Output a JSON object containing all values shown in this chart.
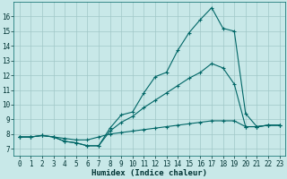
{
  "title": "",
  "xlabel": "Humidex (Indice chaleur)",
  "bg_color": "#c8e8e8",
  "grid_color": "#a0c8c8",
  "line_color": "#006666",
  "xlim": [
    -0.5,
    23.5
  ],
  "ylim": [
    6.5,
    17.0
  ],
  "yticks": [
    7,
    8,
    9,
    10,
    11,
    12,
    13,
    14,
    15,
    16
  ],
  "xticks": [
    0,
    1,
    2,
    3,
    4,
    5,
    6,
    7,
    8,
    9,
    10,
    11,
    12,
    13,
    14,
    15,
    16,
    17,
    18,
    19,
    20,
    21,
    22,
    23
  ],
  "line1_x": [
    0,
    1,
    2,
    3,
    4,
    5,
    6,
    7,
    8,
    9,
    10,
    11,
    12,
    13,
    14,
    15,
    16,
    17,
    18,
    19,
    20,
    21,
    22,
    23
  ],
  "line1_y": [
    7.8,
    7.8,
    7.9,
    7.8,
    7.5,
    7.4,
    7.2,
    7.2,
    8.4,
    9.3,
    9.5,
    10.8,
    11.9,
    12.2,
    13.7,
    14.9,
    15.8,
    16.6,
    15.2,
    15.0,
    9.4,
    8.5,
    8.6,
    8.6
  ],
  "line2_x": [
    0,
    1,
    2,
    3,
    4,
    5,
    6,
    7,
    8,
    9,
    10,
    11,
    12,
    13,
    14,
    15,
    16,
    17,
    18,
    19,
    20,
    21,
    22,
    23
  ],
  "line2_y": [
    7.8,
    7.8,
    7.9,
    7.8,
    7.5,
    7.4,
    7.2,
    7.2,
    8.2,
    8.8,
    9.2,
    9.8,
    10.3,
    10.8,
    11.3,
    11.8,
    12.2,
    12.8,
    12.5,
    11.4,
    8.5,
    8.5,
    8.6,
    8.6
  ],
  "line3_x": [
    0,
    1,
    2,
    3,
    4,
    5,
    6,
    7,
    8,
    9,
    10,
    11,
    12,
    13,
    14,
    15,
    16,
    17,
    18,
    19,
    20,
    21,
    22,
    23
  ],
  "line3_y": [
    7.8,
    7.8,
    7.9,
    7.8,
    7.7,
    7.6,
    7.6,
    7.8,
    8.0,
    8.1,
    8.2,
    8.3,
    8.4,
    8.5,
    8.6,
    8.7,
    8.8,
    8.9,
    8.9,
    8.9,
    8.5,
    8.5,
    8.6,
    8.6
  ],
  "tick_fontsize": 5.5,
  "xlabel_fontsize": 6.5,
  "lw": 0.8,
  "marker_size": 3.5
}
